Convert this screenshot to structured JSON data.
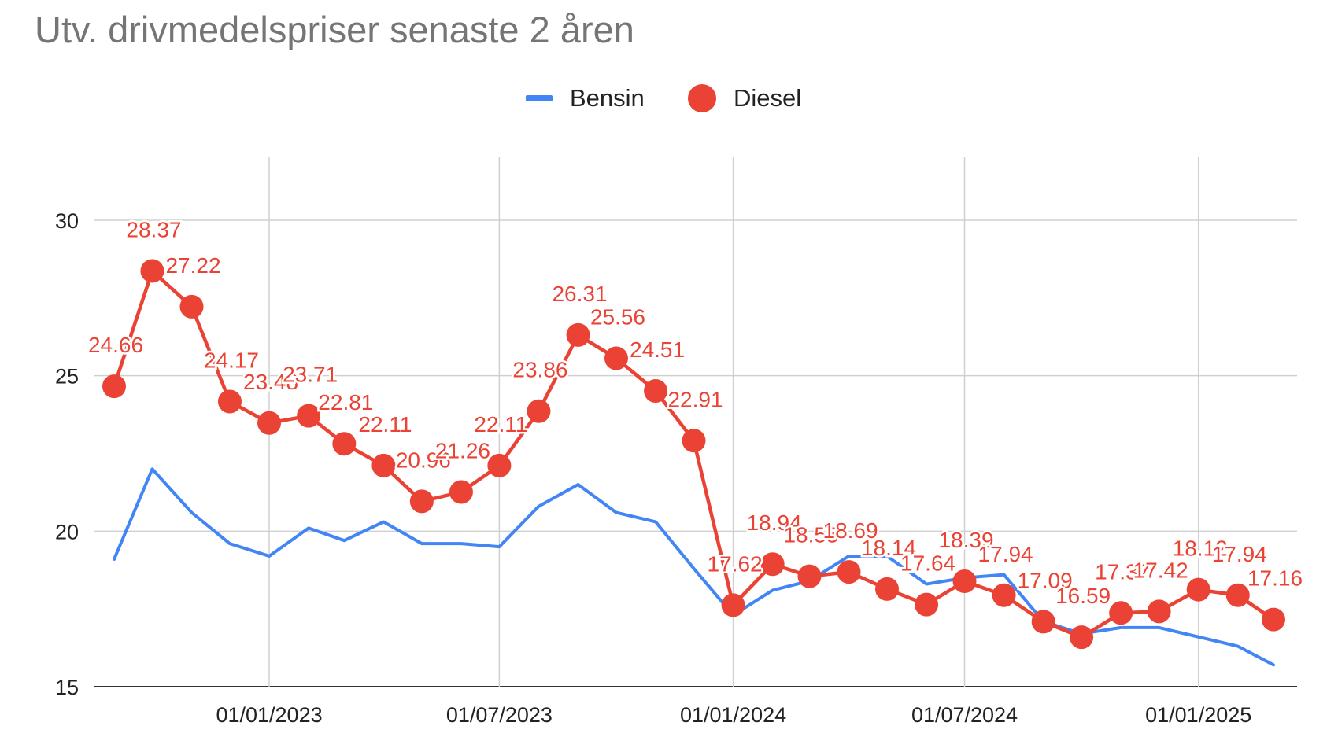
{
  "chart_data": {
    "type": "line",
    "title": "Utv. drivmedelspriser senaste 2 åren",
    "xlabel": "",
    "ylabel": "",
    "ylim": [
      15,
      30
    ],
    "yticks": [
      "15",
      "20",
      "25",
      "30"
    ],
    "xticks": [
      {
        "date": "2023-01-01",
        "label": "01/01/2023"
      },
      {
        "date": "2023-07-01",
        "label": "01/07/2023"
      },
      {
        "date": "2024-01-01",
        "label": "01/01/2024"
      },
      {
        "date": "2024-07-01",
        "label": "01/07/2024"
      },
      {
        "date": "2025-01-01",
        "label": "01/01/2025"
      }
    ],
    "grid": true,
    "legend_position": "top-center",
    "x": [
      "2022-09-01",
      "2022-10-01",
      "2022-11-01",
      "2022-12-01",
      "2023-01-01",
      "2023-02-01",
      "2023-03-01",
      "2023-04-01",
      "2023-05-01",
      "2023-06-01",
      "2023-07-01",
      "2023-08-01",
      "2023-09-01",
      "2023-10-01",
      "2023-11-01",
      "2023-12-01",
      "2024-01-01",
      "2024-02-01",
      "2024-03-01",
      "2024-04-01",
      "2024-05-01",
      "2024-06-01",
      "2024-07-01",
      "2024-08-01",
      "2024-09-01",
      "2024-10-01",
      "2024-11-01",
      "2024-12-01",
      "2025-01-01",
      "2025-02-01",
      "2025-03-01"
    ],
    "series": [
      {
        "name": "Bensin",
        "color": "#4285F4",
        "marker": "line",
        "values": [
          19.1,
          22.0,
          20.6,
          19.6,
          19.2,
          20.1,
          19.7,
          20.3,
          19.6,
          19.6,
          19.5,
          20.8,
          21.5,
          20.6,
          20.3,
          18.8,
          17.3,
          18.1,
          18.4,
          19.2,
          19.2,
          18.3,
          18.5,
          18.6,
          17.1,
          16.7,
          16.9,
          16.9,
          16.6,
          16.3,
          15.7
        ]
      },
      {
        "name": "Diesel",
        "color": "#EA4335",
        "marker": "dot",
        "values": [
          24.66,
          28.37,
          27.22,
          24.17,
          23.48,
          23.71,
          22.81,
          22.11,
          20.96,
          21.26,
          22.11,
          23.86,
          26.31,
          25.56,
          24.51,
          22.91,
          17.62,
          18.94,
          18.55,
          18.69,
          18.14,
          17.64,
          18.39,
          17.94,
          17.09,
          16.59,
          17.37,
          17.42,
          18.12,
          17.94,
          17.16
        ],
        "labels": [
          "24.66",
          "28.37",
          "27.22",
          "24.17",
          "23.48",
          "23.71",
          "22.81",
          "22.11",
          "20.96",
          "21.26",
          "22.11",
          "23.86",
          "26.31",
          "25.56",
          "24.51",
          "22.91",
          "17.62",
          "18.94",
          "18.55",
          "18.69",
          "18.14",
          "17.64",
          "18.39",
          "17.94",
          "17.09",
          "16.59",
          "17.37",
          "17.42",
          "18.12",
          "17.94",
          "17.16"
        ]
      }
    ]
  }
}
